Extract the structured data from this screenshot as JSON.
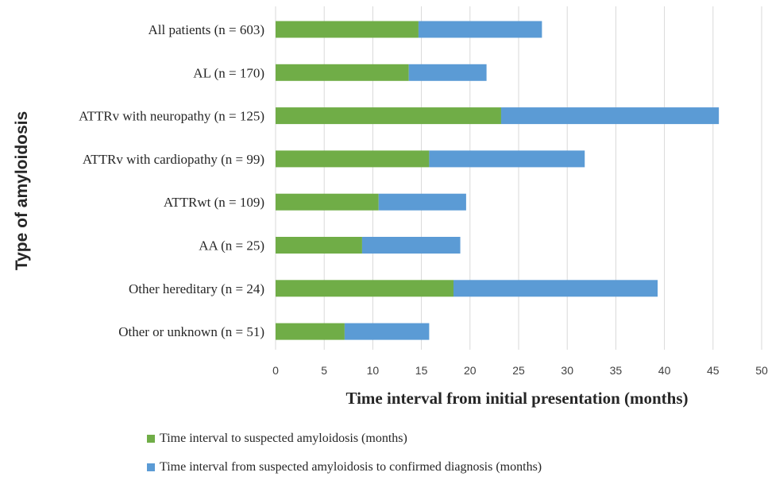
{
  "chart_data": {
    "type": "bar",
    "orientation": "horizontal",
    "stacked": true,
    "categories": [
      "All patients (n = 603)",
      "AL (n = 170)",
      "ATTRv with neuropathy (n = 125)",
      "ATTRv with cardiopathy (n = 99)",
      "ATTRwt (n = 109)",
      "AA (n = 25)",
      "Other hereditary (n = 24)",
      "Other or unknown (n = 51)"
    ],
    "series": [
      {
        "name": "Time interval to suspected amyloidosis (months)",
        "color": "#70ad47",
        "values": [
          14.7,
          13.7,
          23.2,
          15.8,
          10.6,
          8.9,
          18.3,
          7.1
        ]
      },
      {
        "name": "Time interval from suspected amyloidosis to confirmed diagnosis (months)",
        "color": "#5b9bd5",
        "values": [
          12.7,
          8.0,
          22.4,
          16.0,
          9.0,
          10.1,
          21.0,
          8.7
        ]
      }
    ],
    "title": "",
    "xlabel": "Time interval from initial presentation (months)",
    "ylabel": "Type of amyloidosis",
    "xlim": [
      0,
      50
    ],
    "xticks": [
      "0",
      "5",
      "10",
      "15",
      "20",
      "25",
      "30",
      "35",
      "40",
      "45",
      "50"
    ],
    "grid": "vertical",
    "legend_position": "bottom"
  }
}
